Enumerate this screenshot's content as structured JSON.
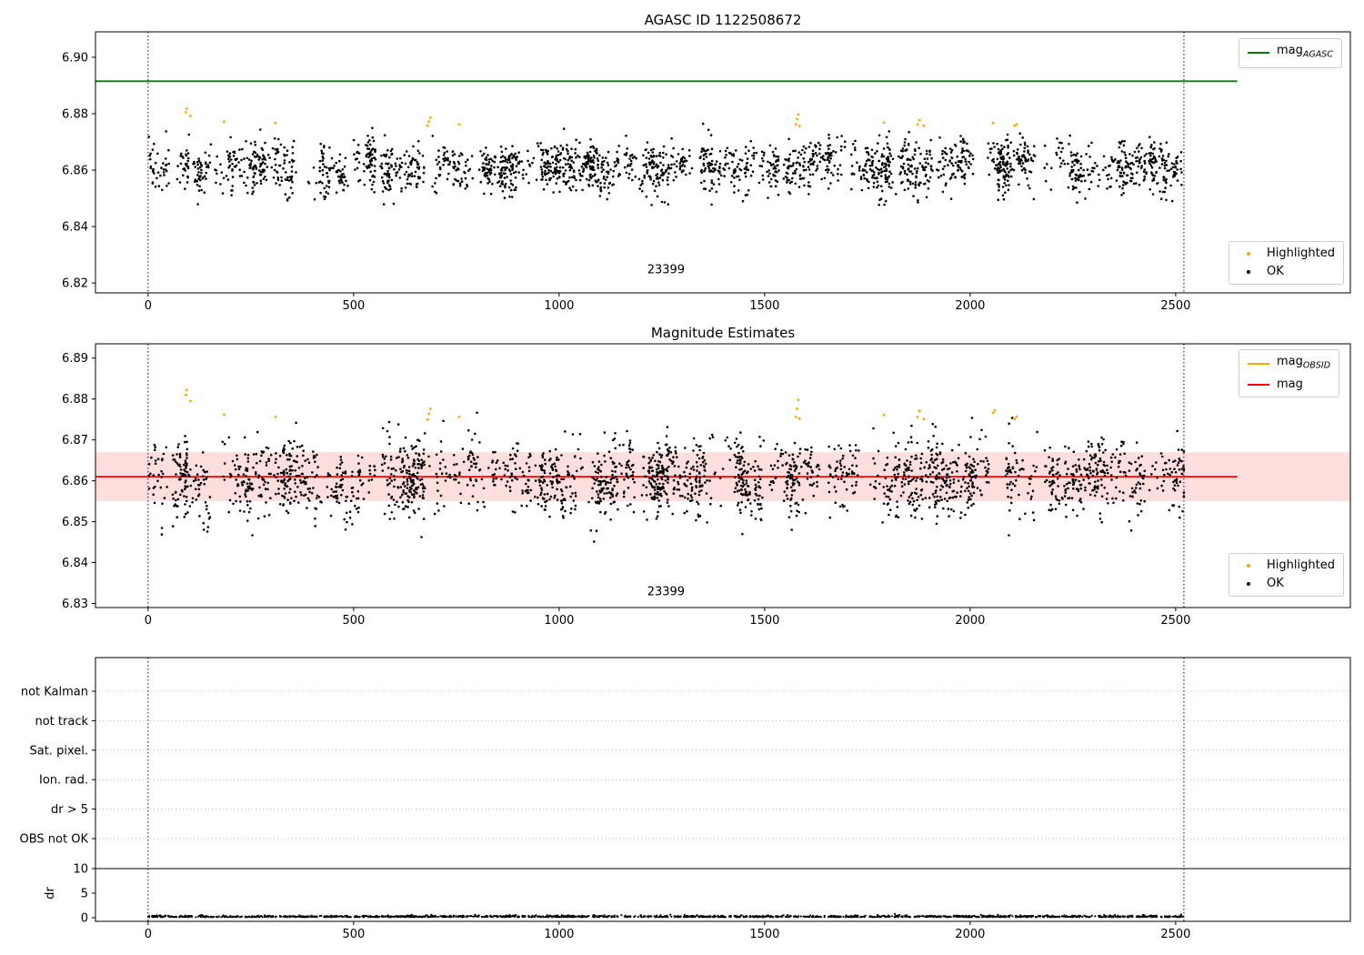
{
  "colors": {
    "background": "#ffffff",
    "axis": "#000000",
    "grid_dotted": "#bbbbbb",
    "boundary_purple": "#800080",
    "agasc_green": "#008000",
    "mag_red": "#ff0000",
    "highlight_orange": "#ffa500",
    "ok_black": "#000000"
  },
  "chart_data": [
    {
      "type": "scatter",
      "title": "AGASC ID 1122508672",
      "xlim": [
        -128,
        2925
      ],
      "ylim": [
        6.8165,
        6.909
      ],
      "xticks": [
        0,
        500,
        1000,
        1500,
        2000,
        2500
      ],
      "xtick_labels": [
        "0",
        "500",
        "1000",
        "1500",
        "2000",
        "2500"
      ],
      "yticks": [
        6.82,
        6.84,
        6.86,
        6.88,
        6.9
      ],
      "ytick_labels": [
        "6.82",
        "6.84",
        "6.86",
        "6.88",
        "6.90"
      ],
      "agasc_line": {
        "y": 6.8915,
        "color": "#008000",
        "label": "mag",
        "label_sub": "AGASC",
        "x_range": [
          -128,
          2650
        ]
      },
      "obsid_boundaries": {
        "xs": [
          0,
          2520
        ],
        "color": "#800080"
      },
      "annotation": {
        "text": "23399",
        "x": 1260,
        "y": 6.8235
      },
      "ok_series": {
        "label": "OK",
        "color": "#000000",
        "n": 2400,
        "x_min": 0,
        "x_max": 2520,
        "y_mean": 6.8612,
        "y_std": 0.0042,
        "y_cluster_std": 0.0022,
        "y_min": 6.8468,
        "y_max": 6.8792,
        "seed": 101
      },
      "highlighted_series": {
        "label": "Highlighted",
        "color": "#ffa500",
        "points": [
          [
            92,
            6.8805
          ],
          [
            94,
            6.8818
          ],
          [
            103,
            6.8792
          ],
          [
            185,
            6.8772
          ],
          [
            310,
            6.8767
          ],
          [
            680,
            6.8757
          ],
          [
            683,
            6.8772
          ],
          [
            687,
            6.8786
          ],
          [
            757,
            6.8762
          ],
          [
            1576,
            6.8762
          ],
          [
            1579,
            6.8781
          ],
          [
            1582,
            6.8797
          ],
          [
            1585,
            6.8756
          ],
          [
            1790,
            6.8768
          ],
          [
            1872,
            6.8762
          ],
          [
            1877,
            6.8777
          ],
          [
            1887,
            6.8757
          ],
          [
            2056,
            6.8767
          ],
          [
            2108,
            6.8757
          ],
          [
            2113,
            6.8762
          ]
        ]
      }
    },
    {
      "type": "scatter",
      "title": "Magnitude Estimates",
      "xlim": [
        -128,
        2925
      ],
      "ylim": [
        6.829,
        6.8935
      ],
      "xticks": [
        0,
        500,
        1000,
        1500,
        2000,
        2500
      ],
      "xtick_labels": [
        "0",
        "500",
        "1000",
        "1500",
        "2000",
        "2500"
      ],
      "yticks": [
        6.83,
        6.84,
        6.85,
        6.86,
        6.87,
        6.88,
        6.89
      ],
      "ytick_labels": [
        "6.83",
        "6.84",
        "6.85",
        "6.86",
        "6.87",
        "6.88",
        "6.89"
      ],
      "mag_line": {
        "y": 6.861,
        "color": "#ff0000",
        "label": "mag",
        "x_range": [
          -128,
          2650
        ]
      },
      "mag_band": {
        "y_low": 6.855,
        "y_high": 6.867,
        "color": "#ff0000",
        "opacity": 0.13
      },
      "obsid_line": {
        "color": "#ffa500",
        "label": "mag",
        "label_sub": "OBSID"
      },
      "obsid_boundaries": {
        "xs": [
          0,
          2520
        ],
        "color": "#800080"
      },
      "annotation": {
        "text": "23399",
        "x": 1260,
        "y": 6.832
      },
      "ok_series": {
        "label": "OK",
        "color": "#000000",
        "n": 2400,
        "x_min": 0,
        "x_max": 2520,
        "y_mean": 6.8607,
        "y_std": 0.0042,
        "y_cluster_std": 0.0022,
        "y_min": 6.845,
        "y_max": 6.8788,
        "seed": 202
      },
      "highlighted_series": {
        "label": "Highlighted",
        "color": "#ffa500",
        "points": [
          [
            92,
            6.881
          ],
          [
            94,
            6.8822
          ],
          [
            103,
            6.8795
          ],
          [
            185,
            6.8762
          ],
          [
            310,
            6.8756
          ],
          [
            680,
            6.875
          ],
          [
            683,
            6.8764
          ],
          [
            687,
            6.8776
          ],
          [
            757,
            6.8756
          ],
          [
            1576,
            6.8756
          ],
          [
            1579,
            6.8776
          ],
          [
            1582,
            6.8798
          ],
          [
            1585,
            6.8752
          ],
          [
            1790,
            6.8761
          ],
          [
            1872,
            6.8756
          ],
          [
            1877,
            6.8771
          ],
          [
            1887,
            6.8751
          ],
          [
            2056,
            6.8766
          ],
          [
            2060,
            6.8772
          ],
          [
            2108,
            6.8751
          ],
          [
            2113,
            6.8757
          ]
        ]
      }
    },
    {
      "type": "scatter",
      "title": "",
      "xlim": [
        -128,
        2925
      ],
      "xticks": [
        0,
        500,
        1000,
        1500,
        2000,
        2500
      ],
      "xtick_labels": [
        "0",
        "500",
        "1000",
        "1500",
        "2000",
        "2500"
      ],
      "categories": [
        "not Kalman",
        "not track",
        "Sat. pixel.",
        "Ion. rad.",
        "dr > 5",
        "OBS not OK"
      ],
      "dr_axis": {
        "label": "dr",
        "ticks": [
          0,
          5,
          10
        ],
        "tick_labels": [
          "0",
          "5",
          "10"
        ],
        "divider_dr": 10
      },
      "obsid_boundaries": {
        "xs": [
          0,
          2520
        ],
        "color": "#800080"
      },
      "dr_series": {
        "label": "dr",
        "color": "#000000",
        "n": 1600,
        "x_min": 0,
        "x_max": 2520,
        "mean": 0.3,
        "spread": 0.16,
        "max": 1.1,
        "seed": 303
      }
    }
  ]
}
